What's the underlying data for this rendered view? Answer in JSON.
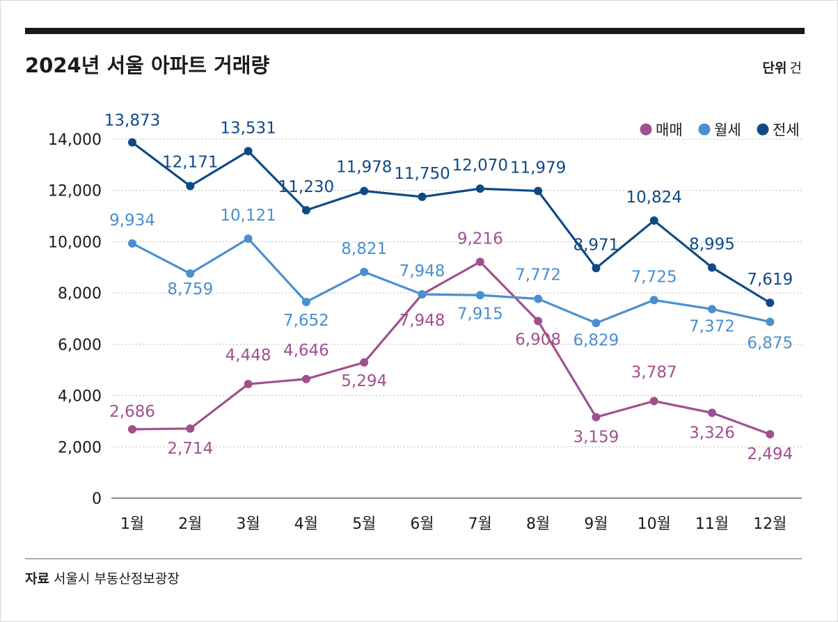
{
  "title": "2024년 서울 아파트 거래량",
  "unit_label": "단위",
  "unit_value": "건",
  "source_label": "자료",
  "source_value": "서울시 부동산정보광장",
  "chart_data": {
    "type": "line",
    "categories": [
      "1월",
      "2월",
      "3월",
      "4월",
      "5월",
      "6월",
      "7월",
      "8월",
      "9월",
      "10월",
      "11월",
      "12월"
    ],
    "ylim": [
      0,
      14000
    ],
    "yticks": [
      0,
      2000,
      4000,
      6000,
      8000,
      10000,
      12000,
      14000
    ],
    "ytick_labels": [
      "0",
      "2,000",
      "4,000",
      "6,000",
      "8,000",
      "10,000",
      "12,000",
      "14,000"
    ],
    "grid": true,
    "legend_position": "top-right",
    "series": [
      {
        "name": "매매",
        "color": "#a0508f",
        "values": [
          2686,
          2714,
          4448,
          4646,
          5294,
          7948,
          9216,
          6908,
          3159,
          3787,
          3326,
          2494
        ],
        "labels": [
          "2,686",
          "2,714",
          "4,448",
          "4,646",
          "5,294",
          "7,948",
          "9,216",
          "6,908",
          "3,159",
          "3,787",
          "3,326",
          "2,494"
        ]
      },
      {
        "name": "월세",
        "color": "#4a8fcf",
        "values": [
          9934,
          8759,
          10121,
          7652,
          8821,
          7948,
          7915,
          7772,
          6829,
          7725,
          7372,
          6875
        ],
        "labels": [
          "9,934",
          "8,759",
          "10,121",
          "7,652",
          "8,821",
          "7,948",
          "7,915",
          "7,772",
          "6,829",
          "7,725",
          "7,372",
          "6,875"
        ]
      },
      {
        "name": "전세",
        "color": "#0f4a86",
        "values": [
          13873,
          12171,
          13531,
          11230,
          11978,
          11750,
          12070,
          11979,
          8971,
          10824,
          8995,
          7619
        ],
        "labels": [
          "13,873",
          "12,171",
          "13,531",
          "11,230",
          "11,978",
          "11,750",
          "12,070",
          "11,979",
          "8,971",
          "10,824",
          "8,995",
          "7,619"
        ]
      }
    ]
  }
}
